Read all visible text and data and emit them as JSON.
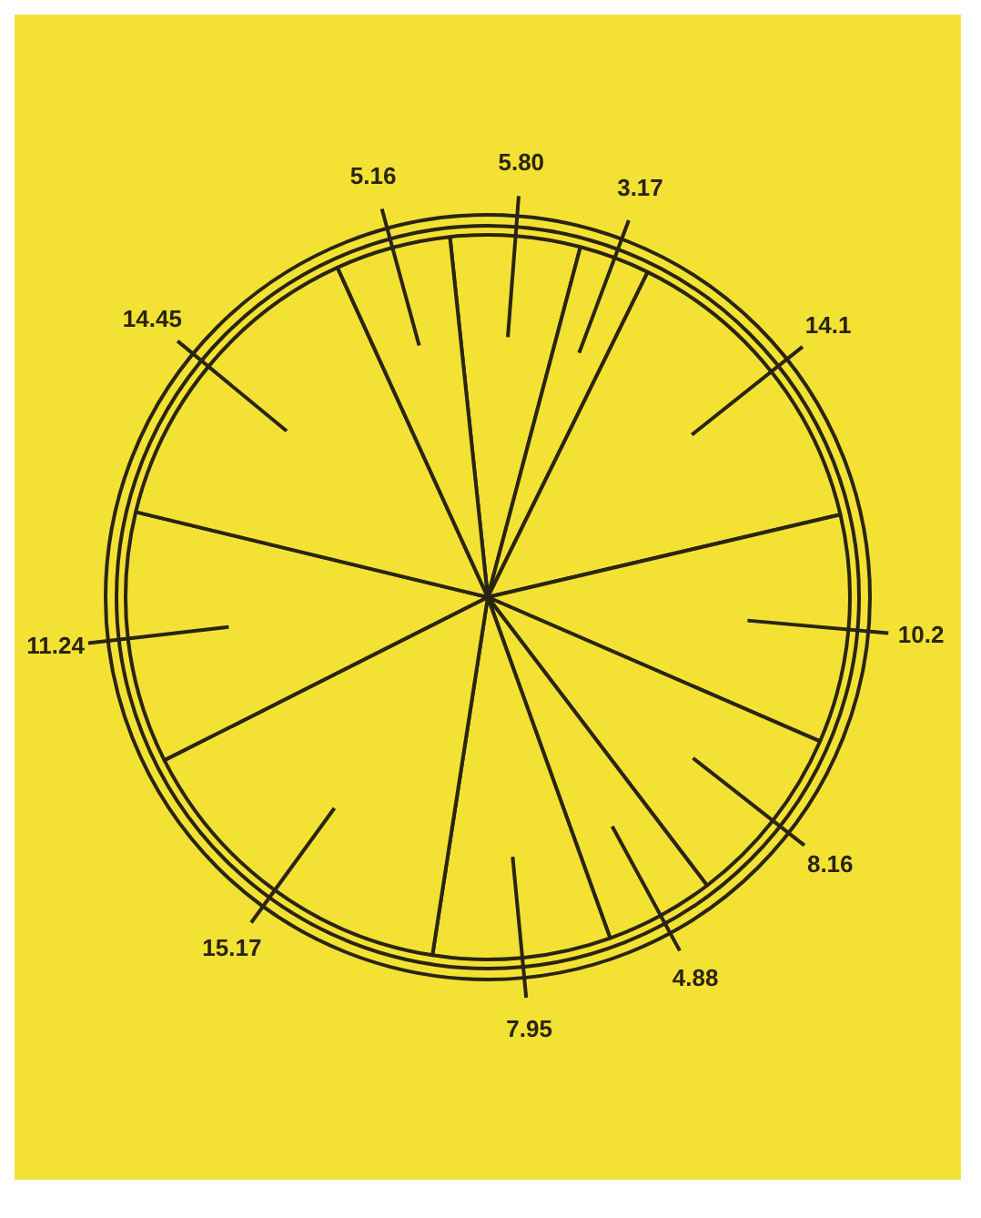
{
  "chart_data": {
    "type": "pie",
    "categories": [
      null,
      null,
      null,
      null,
      null,
      null,
      null,
      null,
      null,
      null,
      null
    ],
    "values": [
      5.8,
      3.17,
      14.1,
      10.2,
      8.16,
      4.88,
      7.95,
      15.17,
      11.24,
      14.45,
      5.16
    ],
    "colors": [
      "#f3e234",
      "#f3e234",
      "#f3e234",
      "#f3e234",
      "#f3e234",
      "#f3e234",
      "#f3e234",
      "#f3e234",
      "#f3e234",
      "#f3e234",
      "#f3e234"
    ],
    "value_labels": [
      "5.80",
      "3.17",
      "14.1",
      "10.2",
      "8.16",
      "4.88",
      "7.95",
      "15.17",
      "11.24",
      "14.45",
      "5.16"
    ],
    "legend": false
  }
}
